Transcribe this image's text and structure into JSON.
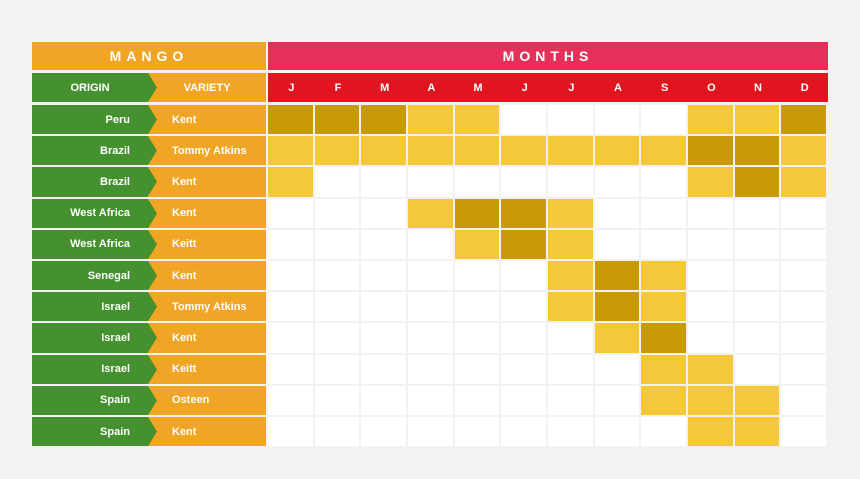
{
  "chart_data": {
    "type": "heatmap",
    "title": "MANGO",
    "months_title": "MONTHS",
    "headers": {
      "origin": "ORIGIN",
      "variety": "VARIETY"
    },
    "months": [
      "J",
      "F",
      "M",
      "A",
      "M",
      "J",
      "J",
      "A",
      "S",
      "O",
      "N",
      "D"
    ],
    "rows": [
      {
        "origin": "Peru",
        "variety": "Kent",
        "levels": [
          2,
          2,
          2,
          1,
          1,
          0,
          0,
          0,
          0,
          1,
          1,
          2
        ]
      },
      {
        "origin": "Brazil",
        "variety": "Tommy Atkins",
        "levels": [
          1,
          1,
          1,
          1,
          1,
          1,
          1,
          1,
          1,
          2,
          2,
          1
        ]
      },
      {
        "origin": "Brazil",
        "variety": "Kent",
        "levels": [
          1,
          0,
          0,
          0,
          0,
          0,
          0,
          0,
          0,
          1,
          2,
          1
        ]
      },
      {
        "origin": "West Africa",
        "variety": "Kent",
        "levels": [
          0,
          0,
          0,
          1,
          2,
          2,
          1,
          0,
          0,
          0,
          0,
          0
        ]
      },
      {
        "origin": "West Africa",
        "variety": "Keitt",
        "levels": [
          0,
          0,
          0,
          0,
          1,
          2,
          1,
          0,
          0,
          0,
          0,
          0
        ]
      },
      {
        "origin": "Senegal",
        "variety": "Kent",
        "levels": [
          0,
          0,
          0,
          0,
          0,
          0,
          1,
          2,
          1,
          0,
          0,
          0
        ]
      },
      {
        "origin": "Israel",
        "variety": "Tommy Atkins",
        "levels": [
          0,
          0,
          0,
          0,
          0,
          0,
          1,
          2,
          1,
          0,
          0,
          0
        ]
      },
      {
        "origin": "Israel",
        "variety": "Kent",
        "levels": [
          0,
          0,
          0,
          0,
          0,
          0,
          0,
          1,
          2,
          0,
          0,
          0
        ]
      },
      {
        "origin": "Israel",
        "variety": "Keitt",
        "levels": [
          0,
          0,
          0,
          0,
          0,
          0,
          0,
          0,
          1,
          1,
          0,
          0
        ]
      },
      {
        "origin": "Spain",
        "variety": "Osteen",
        "levels": [
          0,
          0,
          0,
          0,
          0,
          0,
          0,
          0,
          1,
          1,
          1,
          0
        ]
      },
      {
        "origin": "Spain",
        "variety": "Kent",
        "levels": [
          0,
          0,
          0,
          0,
          0,
          0,
          0,
          0,
          0,
          1,
          1,
          0
        ]
      }
    ],
    "level_colors": [
      "#ffffff",
      "#f4c838",
      "#c89a08"
    ],
    "colors": {
      "origin": "#45902f",
      "variety": "#f0a524",
      "months_header": "#e5305a",
      "month_row": "#e0151f",
      "background": "#f2f2f2"
    }
  }
}
